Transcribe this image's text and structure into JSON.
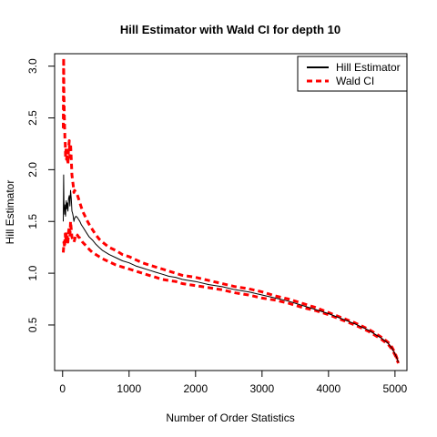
{
  "chart_data": {
    "type": "line",
    "title": "Hill Estimator with Wald CI for depth 10",
    "xlabel": "Number of Order Statistics",
    "ylabel": "Hill Estimator",
    "xlim": [
      -120,
      5180
    ],
    "ylim": [
      0.06,
      3.12
    ],
    "xticks": [
      0,
      1000,
      2000,
      3000,
      4000,
      5000
    ],
    "yticks": [
      0.5,
      1.0,
      1.5,
      2.0,
      2.5,
      3.0
    ],
    "xtick_labels": [
      "0",
      "1000",
      "2000",
      "3000",
      "4000",
      "5000"
    ],
    "ytick_labels": [
      "0.5",
      "1.0",
      "1.5",
      "2.0",
      "2.5",
      "3.0"
    ],
    "legend": {
      "position": "top-right",
      "entries": [
        {
          "label": "Hill Estimator",
          "color": "#000000",
          "style": "solid"
        },
        {
          "label": "Wald CI",
          "color": "#ff0000",
          "style": "dashed"
        }
      ]
    },
    "series": [
      {
        "name": "Hill Estimator",
        "color": "#000000",
        "style": "solid",
        "x": [
          10,
          15,
          20,
          25,
          30,
          35,
          40,
          45,
          50,
          55,
          60,
          70,
          80,
          90,
          100,
          110,
          120,
          130,
          140,
          150,
          160,
          170,
          180,
          200,
          220,
          240,
          260,
          280,
          300,
          330,
          360,
          400,
          450,
          500,
          550,
          600,
          700,
          800,
          900,
          1000,
          1100,
          1200,
          1300,
          1400,
          1500,
          1600,
          1700,
          1800,
          1900,
          2000,
          2200,
          2400,
          2600,
          2800,
          3000,
          3200,
          3400,
          3600,
          3800,
          4000,
          4200,
          4400,
          4600,
          4800,
          4900,
          4950,
          5000,
          5030,
          5050
        ],
        "y": [
          1.5,
          1.95,
          1.7,
          1.62,
          1.57,
          1.6,
          1.66,
          1.55,
          1.64,
          1.7,
          1.62,
          1.68,
          1.6,
          1.72,
          1.75,
          1.65,
          1.8,
          1.72,
          1.6,
          1.58,
          1.55,
          1.5,
          1.53,
          1.55,
          1.54,
          1.52,
          1.5,
          1.47,
          1.45,
          1.42,
          1.39,
          1.35,
          1.32,
          1.28,
          1.25,
          1.22,
          1.18,
          1.15,
          1.12,
          1.1,
          1.07,
          1.05,
          1.03,
          1.01,
          0.99,
          0.97,
          0.96,
          0.94,
          0.93,
          0.92,
          0.89,
          0.87,
          0.84,
          0.82,
          0.79,
          0.76,
          0.73,
          0.69,
          0.65,
          0.61,
          0.56,
          0.51,
          0.45,
          0.37,
          0.32,
          0.28,
          0.22,
          0.18,
          0.14
        ]
      },
      {
        "name": "Wald CI",
        "color": "#ff0000",
        "style": "dashed",
        "x": [
          10,
          15,
          20,
          25,
          30,
          35,
          40,
          45,
          50,
          55,
          60,
          70,
          80,
          90,
          100,
          110,
          120,
          130,
          140,
          150,
          160,
          170,
          180,
          200,
          220,
          240,
          260,
          280,
          300,
          330,
          360,
          400,
          450,
          500,
          550,
          600,
          700,
          800,
          900,
          1000,
          1100,
          1200,
          1300,
          1400,
          1500,
          1600,
          1700,
          1800,
          1900,
          2000,
          2200,
          2400,
          2600,
          2800,
          3000,
          3200,
          3400,
          3600,
          3800,
          4000,
          4200,
          4400,
          4600,
          4800,
          4900,
          4950,
          5000,
          5030,
          5050
        ],
        "y": [
          2.4,
          3.08,
          2.75,
          2.55,
          2.4,
          2.3,
          2.25,
          2.12,
          2.18,
          2.22,
          2.1,
          2.15,
          2.05,
          2.2,
          2.28,
          2.12,
          2.25,
          2.1,
          1.95,
          1.9,
          1.85,
          1.78,
          1.8,
          1.78,
          1.76,
          1.72,
          1.68,
          1.64,
          1.6,
          1.56,
          1.52,
          1.47,
          1.42,
          1.37,
          1.33,
          1.3,
          1.25,
          1.22,
          1.18,
          1.16,
          1.13,
          1.1,
          1.08,
          1.06,
          1.04,
          1.02,
          1.0,
          0.98,
          0.97,
          0.96,
          0.93,
          0.9,
          0.87,
          0.85,
          0.82,
          0.78,
          0.75,
          0.71,
          0.67,
          0.62,
          0.57,
          0.52,
          0.46,
          0.38,
          0.33,
          0.29,
          0.23,
          0.18,
          0.14
        ]
      },
      {
        "color": "#ff0000",
        "style": "dashed",
        "x": [
          10,
          15,
          20,
          25,
          30,
          35,
          40,
          45,
          50,
          55,
          60,
          70,
          80,
          90,
          100,
          110,
          120,
          130,
          140,
          150,
          160,
          170,
          180,
          200,
          220,
          240,
          260,
          280,
          300,
          330,
          360,
          400,
          450,
          500,
          550,
          600,
          700,
          800,
          900,
          1000,
          1100,
          1200,
          1300,
          1400,
          1500,
          1600,
          1700,
          1800,
          1900,
          2000,
          2200,
          2400,
          2600,
          2800,
          3000,
          3200,
          3400,
          3600,
          3800,
          4000,
          4200,
          4400,
          4600,
          4800,
          4900,
          4950,
          5000,
          5030,
          5050
        ],
        "y": [
          1.2,
          1.25,
          1.3,
          1.28,
          1.25,
          1.32,
          1.38,
          1.3,
          1.33,
          1.38,
          1.3,
          1.35,
          1.3,
          1.4,
          1.45,
          1.35,
          1.5,
          1.42,
          1.35,
          1.33,
          1.32,
          1.3,
          1.32,
          1.38,
          1.37,
          1.35,
          1.34,
          1.32,
          1.3,
          1.28,
          1.26,
          1.23,
          1.2,
          1.18,
          1.16,
          1.14,
          1.11,
          1.08,
          1.06,
          1.04,
          1.02,
          1.0,
          0.98,
          0.96,
          0.94,
          0.93,
          0.92,
          0.9,
          0.89,
          0.88,
          0.86,
          0.84,
          0.81,
          0.79,
          0.76,
          0.74,
          0.71,
          0.67,
          0.64,
          0.6,
          0.55,
          0.5,
          0.44,
          0.36,
          0.31,
          0.27,
          0.21,
          0.17,
          0.13
        ]
      }
    ]
  }
}
